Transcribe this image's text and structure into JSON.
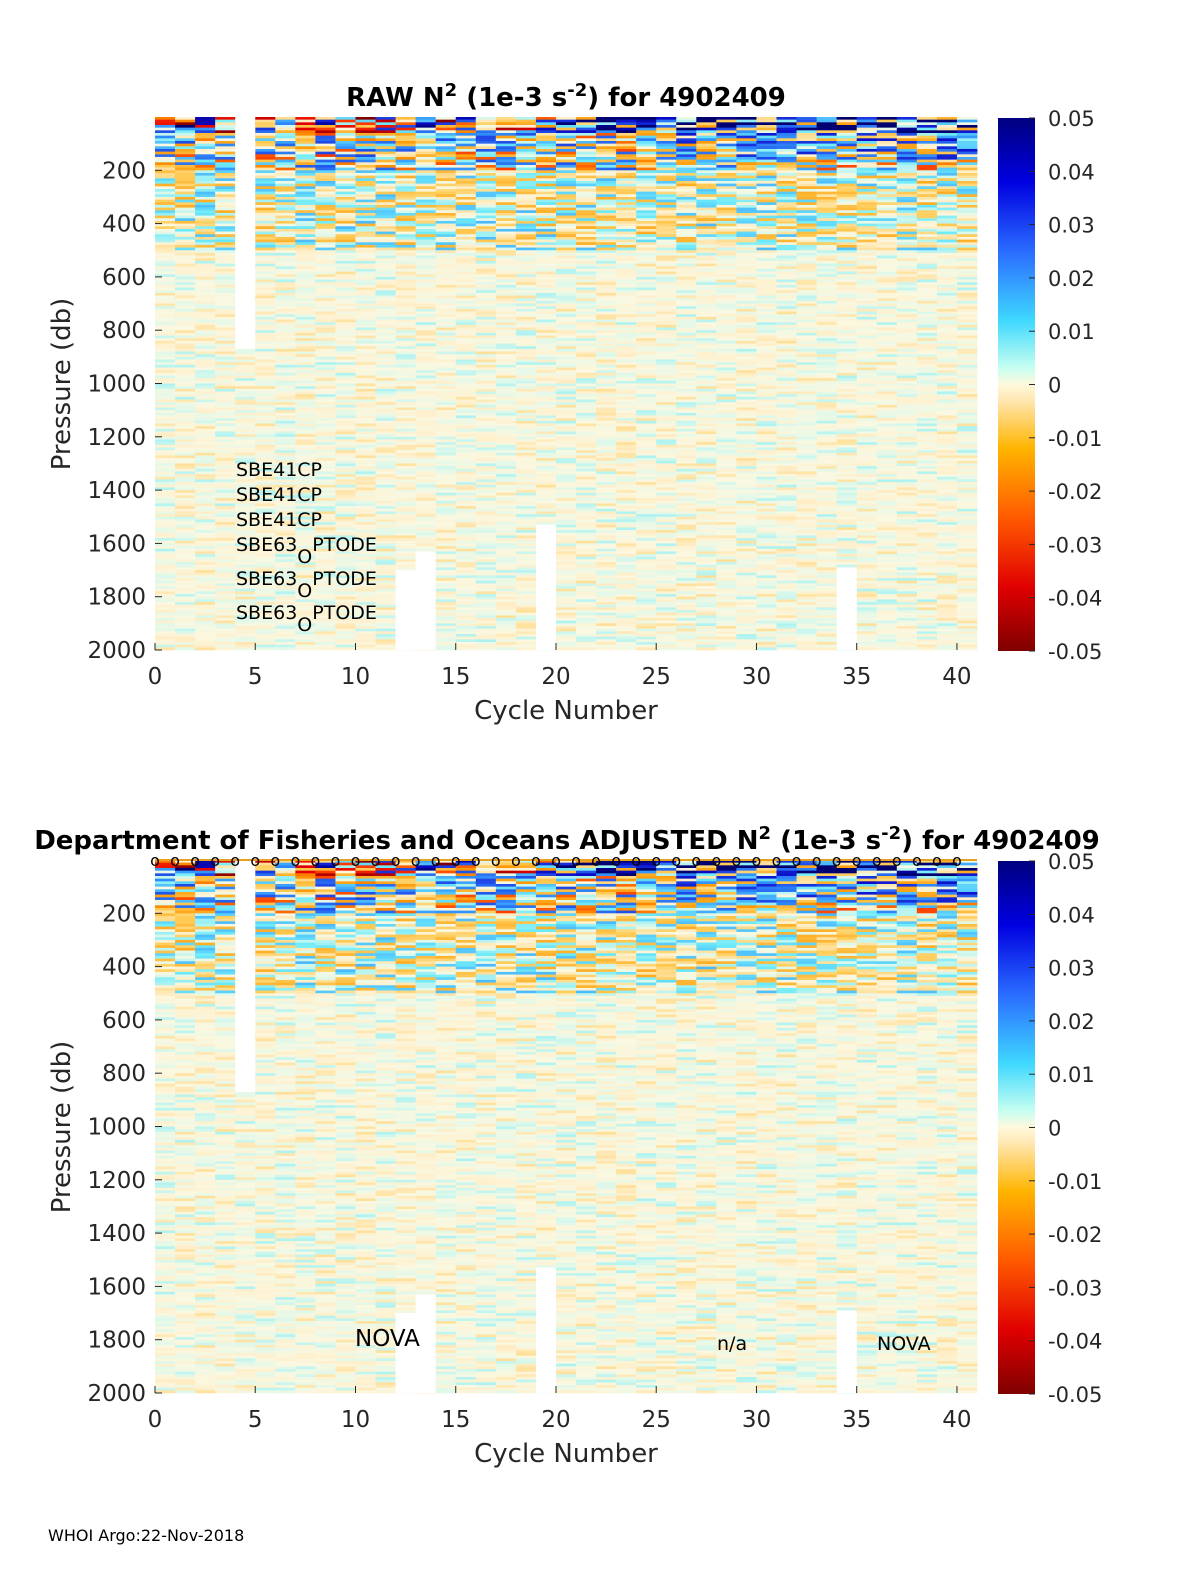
{
  "footer": "WHOI Argo:22-Nov-2018",
  "colorbar": {
    "ticks": [
      "0.05",
      "0.04",
      "0.03",
      "0.02",
      "0.01",
      "0",
      "-0.01",
      "-0.02",
      "-0.03",
      "-0.04",
      "-0.05"
    ],
    "colormap": "jet-like diverging (dark red → red → orange → cream at 0 → cyan → blue → dark blue)"
  },
  "chart_data": [
    {
      "type": "heatmap",
      "title": {
        "pre": "RAW N",
        "sup1": "2",
        "mid": " (1e-3 s",
        "sup2": "-2",
        "post": ") for 4902409"
      },
      "xlabel": "Cycle Number",
      "ylabel": "Pressure (db)",
      "xlim": [
        0,
        41
      ],
      "ylim": [
        2000,
        0
      ],
      "y_reversed": true,
      "clim": [
        -0.05,
        0.05
      ],
      "x_ticks": [
        "0",
        "5",
        "10",
        "15",
        "20",
        "25",
        "30",
        "35",
        "40"
      ],
      "y_ticks": [
        "200",
        "400",
        "600",
        "800",
        "1000",
        "1200",
        "1400",
        "1600",
        "1800",
        "2000"
      ],
      "cycles": [
        1,
        2,
        3,
        4,
        5,
        6,
        7,
        8,
        9,
        10,
        11,
        12,
        13,
        14,
        15,
        16,
        17,
        18,
        19,
        20,
        21,
        22,
        23,
        24,
        25,
        26,
        27,
        28,
        29,
        30,
        31,
        32,
        33,
        34,
        35,
        36,
        37,
        38,
        39,
        40,
        41
      ],
      "missing_data": [
        {
          "cycle": 5,
          "from_pressure": 0,
          "to_pressure": 870
        },
        {
          "cycle": 13,
          "from_pressure": 1700,
          "to_pressure": 2000
        },
        {
          "cycle": 14,
          "from_pressure": 1630,
          "to_pressure": 2000
        },
        {
          "cycle": 20,
          "from_pressure": 1530,
          "to_pressure": 2000
        },
        {
          "cycle": 35,
          "from_pressure": 1690,
          "to_pressure": 2000
        }
      ],
      "annotations": [
        {
          "text": "SBE41CP"
        },
        {
          "text": "SBE41CP"
        },
        {
          "text": "SBE41CP"
        },
        {
          "text": "SBE63",
          "sub": "O",
          "post": "PTODE"
        },
        {
          "text": "SBE63",
          "sub": "O",
          "post": "PTODE"
        },
        {
          "text": "SBE63",
          "sub": "O",
          "post": "PTODE"
        }
      ]
    },
    {
      "type": "heatmap",
      "title": {
        "pre": "Department of Fisheries and Oceans  ADJUSTED N",
        "sup1": "2",
        "mid": " (1e-3 s",
        "sup2": "-2",
        "post": ") for 4902409"
      },
      "xlabel": "Cycle Number",
      "ylabel": "Pressure (db)",
      "xlim": [
        0,
        41
      ],
      "ylim": [
        2000,
        0
      ],
      "y_reversed": true,
      "clim": [
        -0.05,
        0.05
      ],
      "x_ticks": [
        "0",
        "5",
        "10",
        "15",
        "20",
        "25",
        "30",
        "35",
        "40"
      ],
      "y_ticks": [
        "200",
        "400",
        "600",
        "800",
        "1000",
        "1200",
        "1400",
        "1600",
        "1800",
        "2000"
      ],
      "cycles": [
        1,
        2,
        3,
        4,
        5,
        6,
        7,
        8,
        9,
        10,
        11,
        12,
        13,
        14,
        15,
        16,
        17,
        18,
        19,
        20,
        21,
        22,
        23,
        24,
        25,
        26,
        27,
        28,
        29,
        30,
        31,
        32,
        33,
        34,
        35,
        36,
        37,
        38,
        39,
        40,
        41
      ],
      "surface_markers": "o at each cycle along top edge",
      "marker_glyph": "o",
      "missing_data": [
        {
          "cycle": 5,
          "from_pressure": 0,
          "to_pressure": 870
        },
        {
          "cycle": 13,
          "from_pressure": 1700,
          "to_pressure": 2000
        },
        {
          "cycle": 14,
          "from_pressure": 1630,
          "to_pressure": 2000
        },
        {
          "cycle": 20,
          "from_pressure": 1530,
          "to_pressure": 2000
        },
        {
          "cycle": 35,
          "from_pressure": 1690,
          "to_pressure": 2000
        }
      ],
      "annotations": [
        {
          "text": "NOVA"
        },
        {
          "text": "n/a"
        },
        {
          "text": "NOVA"
        }
      ]
    }
  ]
}
